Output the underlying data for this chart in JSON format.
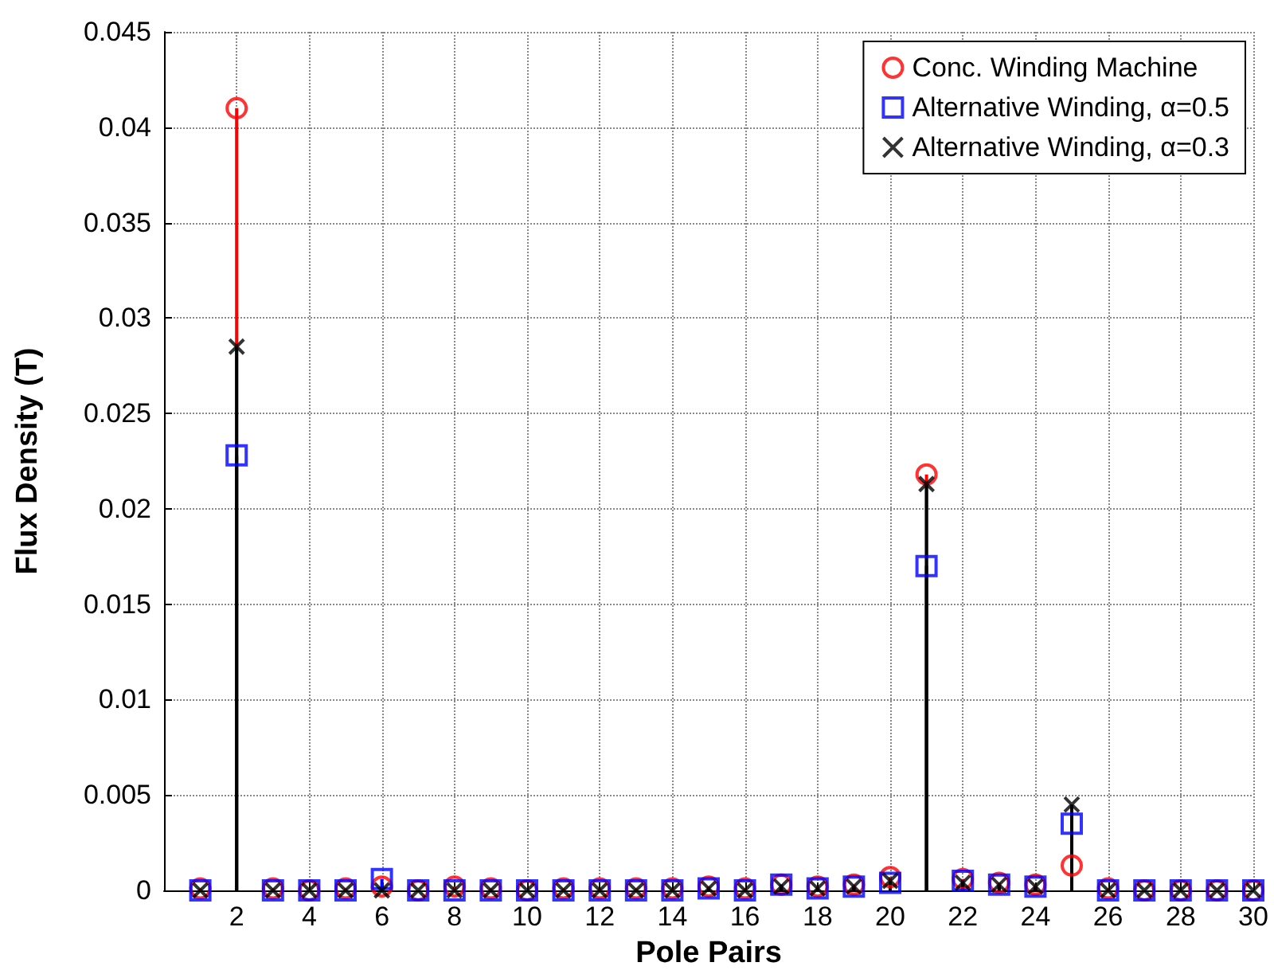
{
  "chart_data": {
    "type": "lollipop",
    "xlabel": "Pole Pairs",
    "ylabel": "Flux Density (T)",
    "x": [
      1,
      2,
      3,
      4,
      5,
      6,
      7,
      8,
      9,
      10,
      11,
      12,
      13,
      14,
      15,
      16,
      17,
      18,
      19,
      20,
      21,
      22,
      23,
      24,
      25,
      26,
      27,
      28,
      29,
      30
    ],
    "xlim": [
      0,
      30
    ],
    "xticks": [
      2,
      4,
      6,
      8,
      10,
      12,
      14,
      16,
      18,
      20,
      22,
      24,
      26,
      28,
      30
    ],
    "ylim": [
      0,
      0.045
    ],
    "yticks": [
      0,
      0.005,
      0.01,
      0.015,
      0.02,
      0.025,
      0.03,
      0.035,
      0.04,
      0.045
    ],
    "grid": true,
    "legend": "top right",
    "series": [
      {
        "name": "Conc. Winding Machine",
        "color": "#ff0000",
        "marker": "circle",
        "values": [
          0.0001,
          0.041,
          0.0001,
          0,
          0.0001,
          0.0002,
          0,
          0.0002,
          0.0001,
          0,
          0.0001,
          0.0001,
          0.0001,
          0.0001,
          0.0002,
          0.0001,
          0.0003,
          0.0002,
          0.0003,
          0.0007,
          0.0218,
          0.0006,
          0.0004,
          0.0003,
          0.0013,
          0.0001,
          0,
          0,
          0,
          0
        ]
      },
      {
        "name": "Alternative Winding, α=0.5",
        "color": "#0000ff",
        "marker": "square",
        "values": [
          0,
          0.0228,
          0,
          0,
          0,
          0.0006,
          0,
          0,
          0,
          0,
          0,
          0,
          0,
          0,
          0.0001,
          0,
          0.0003,
          0.0001,
          0.0002,
          0.0004,
          0.017,
          0.0005,
          0.0003,
          0.0002,
          0.0035,
          0,
          0,
          0,
          0,
          0
        ]
      },
      {
        "name": "Alternative Winding, α=0.3",
        "color": "#000000",
        "marker": "cross",
        "values": [
          0,
          0.0285,
          0,
          0,
          0,
          0,
          0,
          0,
          0,
          0,
          0,
          0,
          0,
          0,
          0.0001,
          0,
          0.0002,
          0.0001,
          0.0002,
          0.0005,
          0.0213,
          0.0004,
          0.0003,
          0.0002,
          0.0045,
          0,
          0,
          0,
          0,
          0
        ]
      }
    ]
  }
}
